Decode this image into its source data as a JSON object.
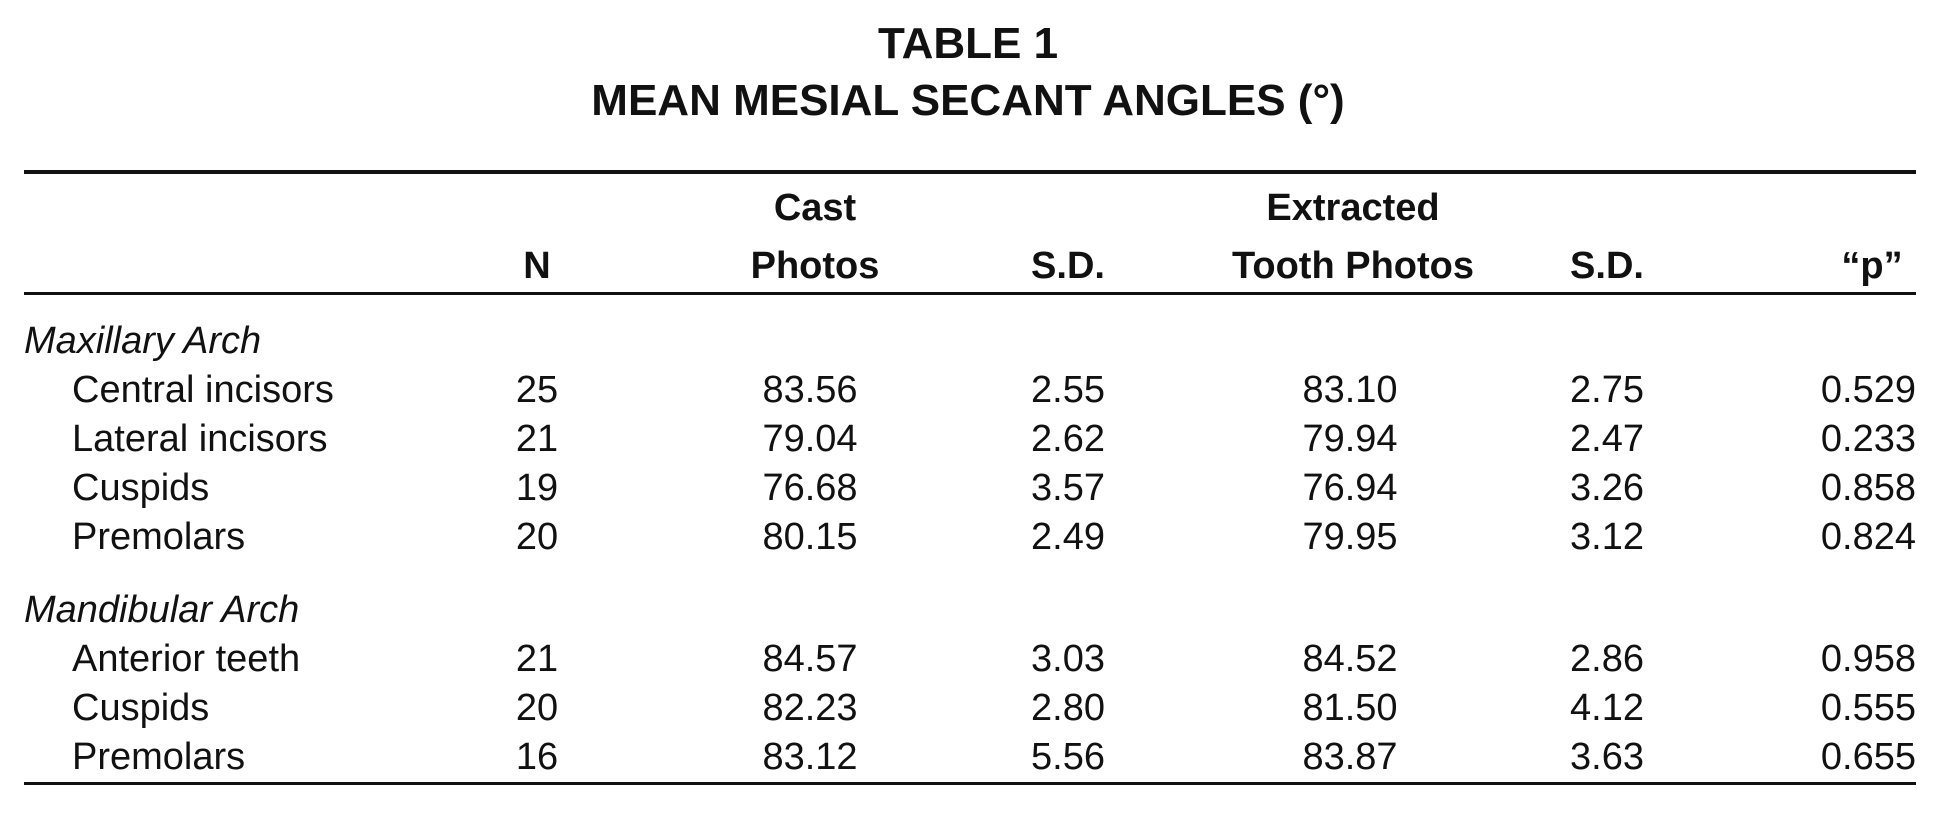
{
  "title": {
    "line1": "TABLE 1",
    "line2": "MEAN MESIAL SECANT ANGLES (°)"
  },
  "columns": {
    "n": "N",
    "cast_top": "Cast",
    "cast_bottom": "Photos",
    "sd1": "S.D.",
    "extracted_top": "Extracted",
    "extracted_bottom": "Tooth Photos",
    "sd2": "S.D.",
    "p": "“p”"
  },
  "sections": [
    {
      "name": "Maxillary Arch",
      "rows": [
        {
          "label": "Central incisors",
          "n": "25",
          "cast": "83.56",
          "sd1": "2.55",
          "extracted": "83.10",
          "sd2": "2.75",
          "p": "0.529"
        },
        {
          "label": "Lateral incisors",
          "n": "21",
          "cast": "79.04",
          "sd1": "2.62",
          "extracted": "79.94",
          "sd2": "2.47",
          "p": "0.233"
        },
        {
          "label": "Cuspids",
          "n": "19",
          "cast": "76.68",
          "sd1": "3.57",
          "extracted": "76.94",
          "sd2": "3.26",
          "p": "0.858"
        },
        {
          "label": "Premolars",
          "n": "20",
          "cast": "80.15",
          "sd1": "2.49",
          "extracted": "79.95",
          "sd2": "3.12",
          "p": "0.824"
        }
      ]
    },
    {
      "name": "Mandibular Arch",
      "rows": [
        {
          "label": "Anterior teeth",
          "n": "21",
          "cast": "84.57",
          "sd1": "3.03",
          "extracted": "84.52",
          "sd2": "2.86",
          "p": "0.958"
        },
        {
          "label": "Cuspids",
          "n": "20",
          "cast": "82.23",
          "sd1": "2.80",
          "extracted": "81.50",
          "sd2": "4.12",
          "p": "0.555"
        },
        {
          "label": "Premolars",
          "n": "16",
          "cast": "83.12",
          "sd1": "5.56",
          "extracted": "83.87",
          "sd2": "3.63",
          "p": "0.655"
        }
      ]
    }
  ]
}
